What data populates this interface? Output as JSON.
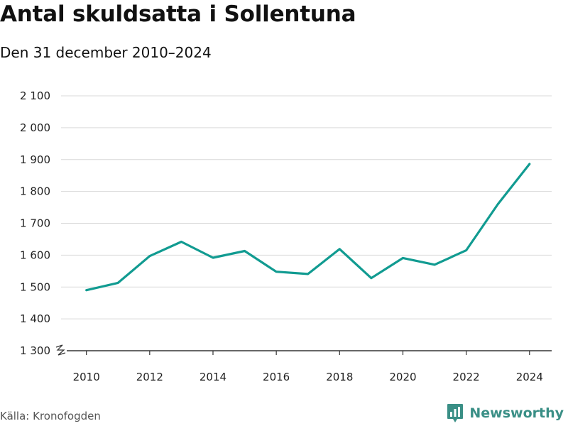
{
  "header": {
    "title": "Antal skuldsatta i Sollentuna",
    "subtitle": "Den 31 december 2010–2024"
  },
  "footer": {
    "source": "Källa: Kronofogden",
    "brand": "Newsworthy",
    "brand_icon": "bar-chart-logo-icon"
  },
  "colors": {
    "line": "#119b91",
    "grid": "#d9d9d9",
    "axis": "#333333",
    "brand": "#3a8f86"
  },
  "chart_data": {
    "type": "line",
    "title": "Antal skuldsatta i Sollentuna",
    "subtitle": "Den 31 december 2010–2024",
    "xlabel": "",
    "ylabel": "",
    "x": [
      2010,
      2011,
      2012,
      2013,
      2014,
      2015,
      2016,
      2017,
      2018,
      2019,
      2020,
      2021,
      2022,
      2023,
      2024
    ],
    "series": [
      {
        "values": [
          1490,
          1513,
          1597,
          1642,
          1592,
          1613,
          1548,
          1541,
          1619,
          1528,
          1591,
          1570,
          1615,
          1760,
          1886
        ]
      }
    ],
    "xlim": [
      2009.2,
      2024.7
    ],
    "ylim": [
      1300,
      2100
    ],
    "x_ticks": [
      2010,
      2012,
      2014,
      2016,
      2018,
      2020,
      2022,
      2024
    ],
    "y_ticks": [
      1300,
      1400,
      1500,
      1600,
      1700,
      1800,
      1900,
      2000,
      2100
    ],
    "x_tick_labels": [
      "2010",
      "2012",
      "2014",
      "2016",
      "2018",
      "2020",
      "2022",
      "2024"
    ],
    "y_tick_labels": [
      "1 300",
      "1 400",
      "1 500",
      "1 600",
      "1 700",
      "1 800",
      "1 900",
      "2 000",
      "2 100"
    ],
    "y_axis_break": true,
    "grid": true,
    "legend": "none"
  }
}
